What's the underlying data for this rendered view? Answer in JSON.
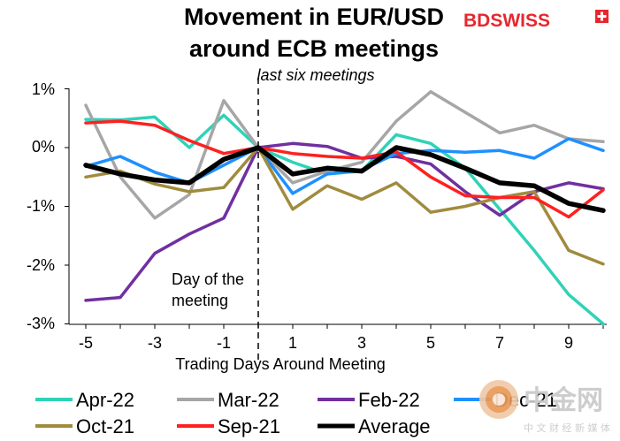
{
  "brand": {
    "name": "BDSWISS",
    "accent": "#e8262d"
  },
  "watermark": {
    "name": "中金网",
    "subtitle": "中 文 财 经 新 媒 体",
    "color": "#c9c9c9"
  },
  "chart_data": {
    "type": "line",
    "title_line1": "Movement in EUR/USD",
    "title_line2": "around ECB meetings",
    "subtitle": "last six meetings",
    "xlabel": "Trading Days Around Meeting",
    "ylabel": "",
    "xlim": [
      -5,
      10
    ],
    "ylim": [
      -3,
      1
    ],
    "x_ticks": [
      "-5",
      "-3",
      "-1",
      "1",
      "3",
      "5",
      "7",
      "9"
    ],
    "y_ticks": [
      "1%",
      "0%",
      "-1%",
      "-2%",
      "-3%"
    ],
    "grid": false,
    "legend_position": "bottom",
    "annotation": "Day of the meeting",
    "annotation_line1": "Day of the",
    "annotation_line2": "meeting",
    "x": [
      -5,
      -4,
      -3,
      -2,
      -1,
      0,
      1,
      2,
      3,
      4,
      5,
      6,
      7,
      8,
      9,
      10
    ],
    "series": [
      {
        "name": "Apr-22",
        "color": "#2ed3b7",
        "width": 3.5,
        "values": [
          0.48,
          0.47,
          0.52,
          0.0,
          0.55,
          0.0,
          -0.25,
          -0.45,
          -0.4,
          0.22,
          0.07,
          -0.35,
          -1.05,
          -1.75,
          -2.5,
          -3.0
        ]
      },
      {
        "name": "Mar-22",
        "color": "#a6a6a6",
        "width": 3.5,
        "values": [
          0.72,
          -0.5,
          -1.2,
          -0.8,
          0.8,
          0.0,
          -0.6,
          -0.4,
          -0.25,
          0.45,
          0.95,
          0.6,
          0.25,
          0.38,
          0.15,
          0.1
        ]
      },
      {
        "name": "Feb-22",
        "color": "#7030a0",
        "width": 3.5,
        "values": [
          -2.6,
          -2.55,
          -1.8,
          -1.47,
          -1.2,
          0.0,
          0.07,
          0.02,
          -0.18,
          -0.15,
          -0.28,
          -0.75,
          -1.15,
          -0.75,
          -0.6,
          -0.7
        ]
      },
      {
        "name": "Dec-21",
        "color": "#1e90ff",
        "width": 3.5,
        "values": [
          -0.32,
          -0.15,
          -0.42,
          -0.6,
          -0.3,
          0.0,
          -0.78,
          -0.45,
          -0.38,
          -0.1,
          -0.05,
          -0.08,
          -0.05,
          -0.18,
          0.15,
          -0.05
        ]
      },
      {
        "name": "Oct-21",
        "color": "#a08b3e",
        "width": 3.5,
        "values": [
          -0.5,
          -0.4,
          -0.62,
          -0.75,
          -0.68,
          0.0,
          -1.05,
          -0.65,
          -0.88,
          -0.6,
          -1.1,
          -1.0,
          -0.85,
          -0.75,
          -1.75,
          -1.98
        ]
      },
      {
        "name": "Sep-21",
        "color": "#ff2020",
        "width": 3.5,
        "values": [
          0.42,
          0.45,
          0.38,
          0.12,
          -0.1,
          0.0,
          -0.1,
          -0.15,
          -0.18,
          -0.07,
          -0.5,
          -0.82,
          -0.85,
          -0.85,
          -1.18,
          -0.72
        ]
      },
      {
        "name": "Average",
        "color": "#000000",
        "width": 5.5,
        "values": [
          -0.3,
          -0.45,
          -0.55,
          -0.6,
          -0.2,
          0.0,
          -0.45,
          -0.35,
          -0.4,
          0.0,
          -0.12,
          -0.35,
          -0.6,
          -0.65,
          -0.95,
          -1.07
        ]
      }
    ],
    "legend_labels": [
      "Apr-22",
      "Mar-22",
      "Feb-22",
      "Dec-21",
      "Oct-21",
      "Sep-21",
      "Average"
    ]
  }
}
